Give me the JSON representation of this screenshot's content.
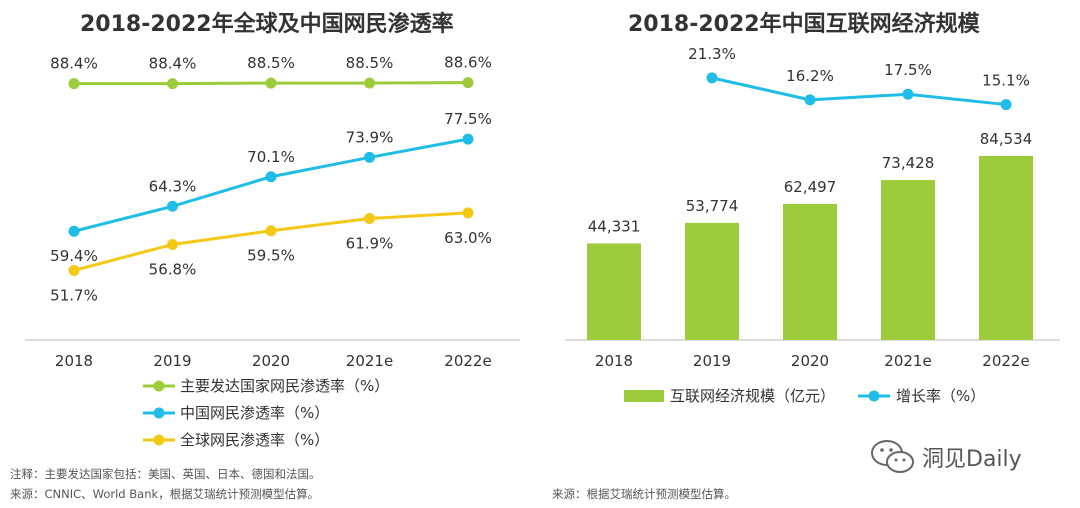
{
  "chart_data": [
    {
      "type": "line",
      "title": "2018-2022年全球及中国网民渗透率",
      "categories": [
        "2018",
        "2019",
        "2020",
        "2021e",
        "2022e"
      ],
      "ylim": [
        40,
        95
      ],
      "series": [
        {
          "name": "主要发达国家网民渗透率（%）",
          "color": "#9ccc3b",
          "values": [
            88.4,
            88.4,
            88.5,
            88.5,
            88.6
          ],
          "labels": [
            "88.4%",
            "88.4%",
            "88.5%",
            "88.5%",
            "88.6%"
          ]
        },
        {
          "name": "中国网民渗透率（%）",
          "color": "#1fbde8",
          "values": [
            59.4,
            64.3,
            70.1,
            73.9,
            77.5
          ],
          "labels": [
            "59.4%",
            "64.3%",
            "70.1%",
            "73.9%",
            "77.5%"
          ]
        },
        {
          "name": "全球网民渗透率（%）",
          "color": "#f5c816",
          "values": [
            51.7,
            56.8,
            59.5,
            61.9,
            63.0
          ],
          "labels": [
            "51.7%",
            "56.8%",
            "59.5%",
            "61.9%",
            "63.0%"
          ]
        }
      ]
    },
    {
      "type": "bar",
      "title": "2018-2022年中国互联网经济规模",
      "categories": [
        "2018",
        "2019",
        "2020",
        "2021e",
        "2022e"
      ],
      "ylim": [
        0,
        90000
      ],
      "series": [
        {
          "name": "互联网经济规模（亿元）",
          "color": "#9ccc3b",
          "values": [
            44331,
            53774,
            62497,
            73428,
            84534
          ],
          "labels": [
            "44,331",
            "53,774",
            "62,497",
            "73,428",
            "84,534"
          ]
        },
        {
          "name": "增长率（%）",
          "color": "#1fbde8",
          "type": "line",
          "values": [
            null,
            21.3,
            16.2,
            17.5,
            15.1
          ],
          "labels": [
            "",
            "21.3%",
            "16.2%",
            "17.5%",
            "15.1%"
          ]
        }
      ]
    }
  ],
  "notes": {
    "left_note1": "注释：主要发达国家包括：美国、英国、日本、德国和法国。",
    "left_note2": "来源：CNNIC、World Bank，根据艾瑞统计预测模型估算。",
    "right_note": "来源：根据艾瑞统计预测模型估算。"
  },
  "watermark": {
    "text": "洞见Daily",
    "icon": "wechat-icon"
  }
}
